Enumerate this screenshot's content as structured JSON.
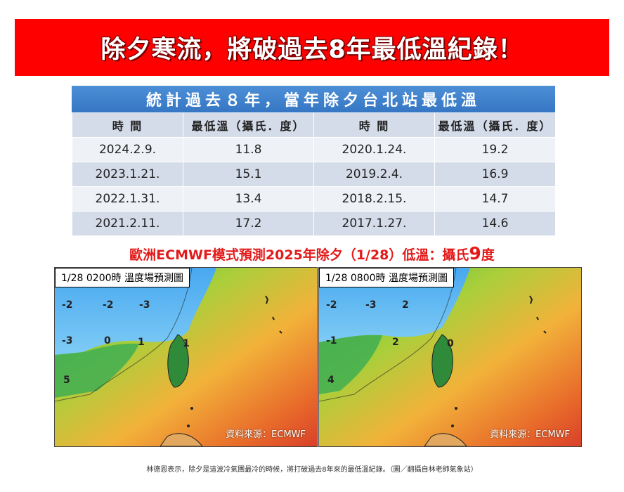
{
  "banner": {
    "title": "除夕寒流，將破過去8年最低溫紀錄！",
    "color": "#ff0000"
  },
  "table": {
    "title": "統計過去８年，當年除夕台北站最低溫",
    "headers": [
      "時 間",
      "最低溫（攝氏．度）",
      "時 間",
      "最低溫（攝氏．度）"
    ],
    "rows": [
      [
        "2024.2.9.",
        "11.8",
        "2020.1.24.",
        "19.2"
      ],
      [
        "2023.1.21.",
        "15.1",
        "2019.2.4.",
        "16.9"
      ],
      [
        "2022.1.31.",
        "13.4",
        "2018.2.15.",
        "14.7"
      ],
      [
        "2021.2.11.",
        "17.2",
        "2017.1.27.",
        "14.6"
      ]
    ]
  },
  "forecast": {
    "prefix": "歐洲ECMWF模式預測2025年除夕（1/28）低溫：攝氏",
    "value": "9",
    "suffix": "度"
  },
  "maps": [
    {
      "label": "1/28 0200時  溫度場預測圖",
      "source": "資料來源：ECMWF",
      "isolines": [
        "-2",
        "-2",
        "-3",
        "-3",
        "0",
        "1",
        "1",
        "5"
      ]
    },
    {
      "label": "1/28 0800時  溫度場預測圖",
      "source": "資料來源：ECMWF",
      "isolines": [
        "-2",
        "-3",
        "2",
        "-1",
        "2",
        "0",
        "4"
      ]
    }
  ],
  "caption": "林德恩表示，除夕是這波冷氣團最冷的時候，將打破過去8年來的最低溫紀錄。（圖／翻攝自林老師氣象站）"
}
